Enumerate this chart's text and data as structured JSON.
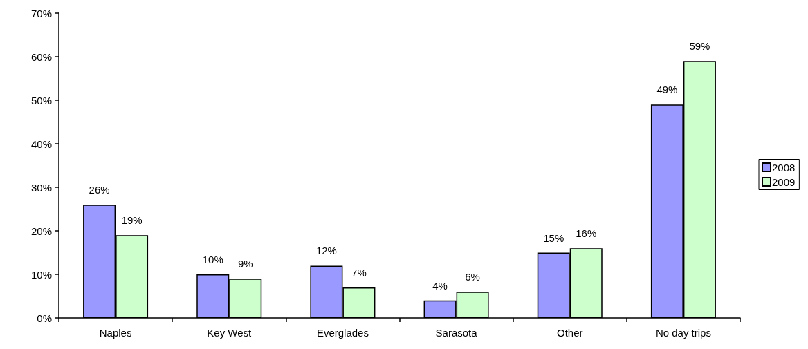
{
  "chart_data": {
    "type": "bar",
    "categories": [
      "Naples",
      "Key West",
      "Everglades",
      "Sarasota",
      "Other",
      "No day trips"
    ],
    "series": [
      {
        "name": "2008",
        "color": "#9999ff",
        "values": [
          26,
          10,
          12,
          4,
          15,
          49
        ],
        "value_labels": [
          "26%",
          "10%",
          "12%",
          "4%",
          "15%",
          "49%"
        ]
      },
      {
        "name": "2009",
        "color": "#ccffcc",
        "values": [
          19,
          9,
          7,
          6,
          16,
          59
        ],
        "value_labels": [
          "19%",
          "9%",
          "7%",
          "6%",
          "16%",
          "59%"
        ]
      }
    ],
    "ylim": [
      0,
      70
    ],
    "yticks": [
      {
        "value": 0,
        "label": "0%"
      },
      {
        "value": 10,
        "label": "10%"
      },
      {
        "value": 20,
        "label": "20%"
      },
      {
        "value": 30,
        "label": "30%"
      },
      {
        "value": 40,
        "label": "40%"
      },
      {
        "value": 50,
        "label": "50%"
      },
      {
        "value": 60,
        "label": "60%"
      },
      {
        "value": 70,
        "label": "70%"
      }
    ],
    "grid": false,
    "legend": "right"
  }
}
